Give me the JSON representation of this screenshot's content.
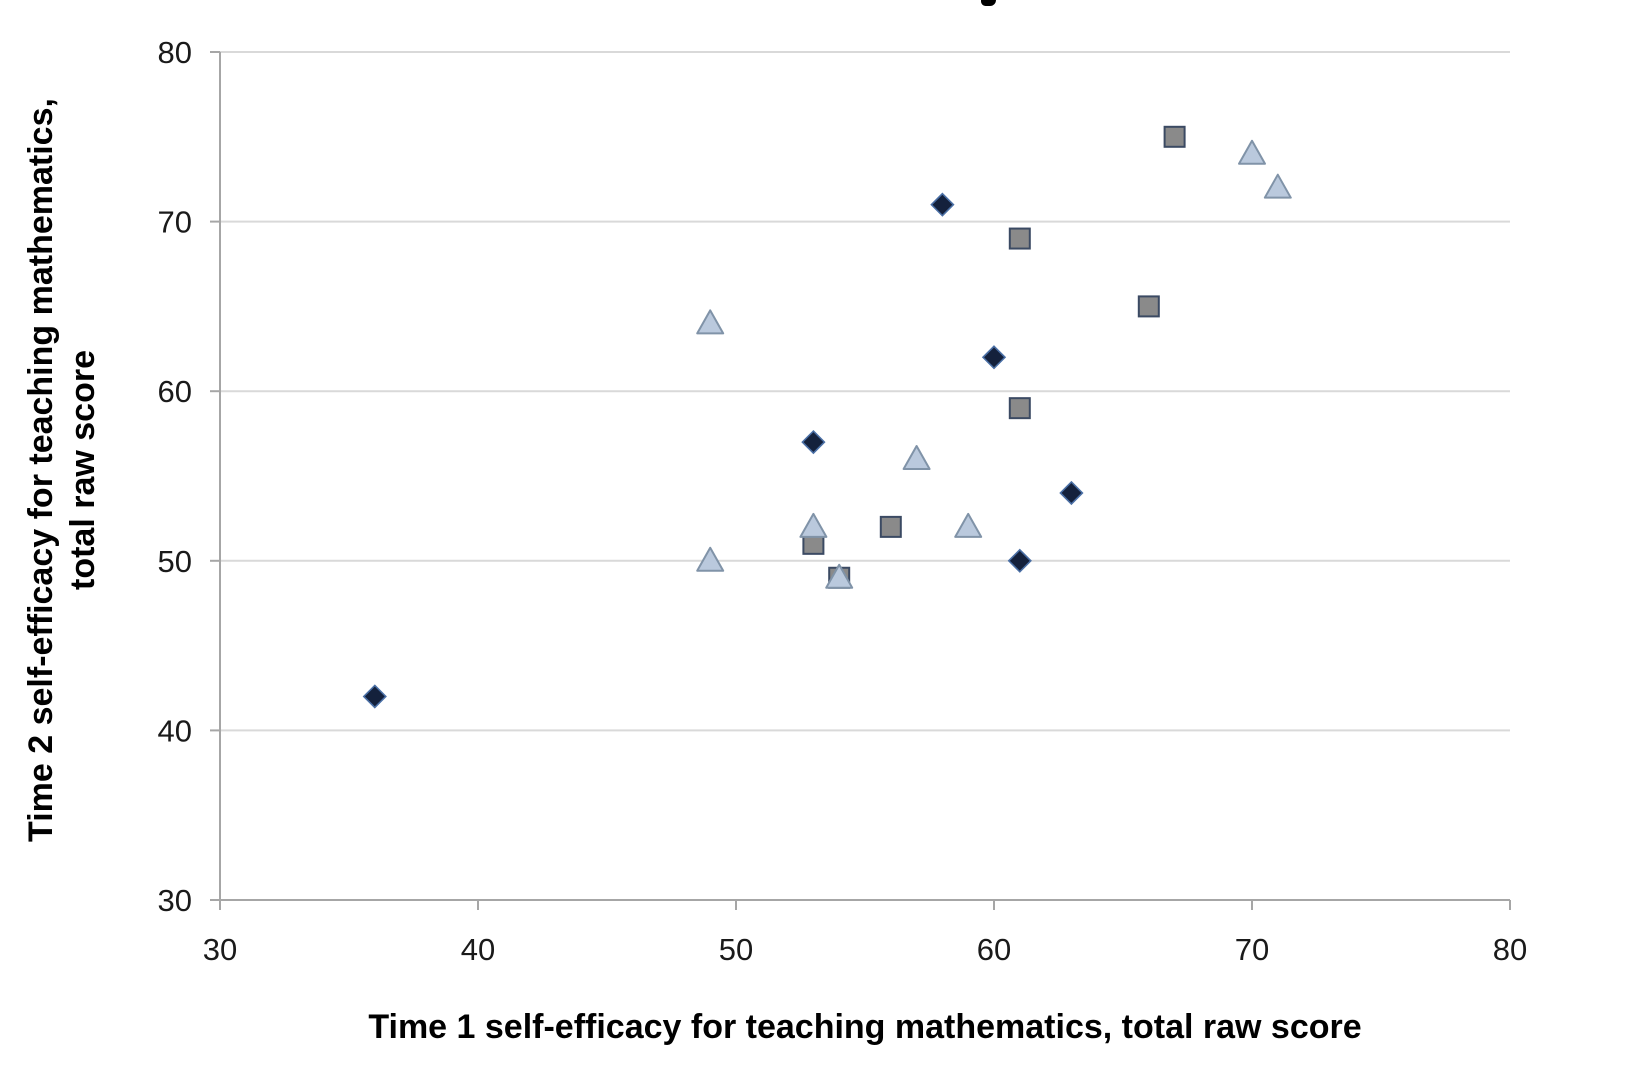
{
  "page": {
    "background": "#ffffff"
  },
  "chart_data": {
    "type": "scatter",
    "title": "",
    "xlabel": "Time 1 self-efficacy for teaching mathematics, total raw score",
    "ylabel": "Time 2 self-efficacy for teaching mathematics, total raw score",
    "ylabel_lines": [
      "Time 2 self-efficacy for teaching mathematics,",
      "total raw score"
    ],
    "xlim": [
      30,
      80
    ],
    "ylim": [
      30,
      80
    ],
    "x_ticks": [
      30,
      40,
      50,
      60,
      70,
      80
    ],
    "y_ticks": [
      30,
      40,
      50,
      60,
      70,
      80
    ],
    "grid": "horizontal-only",
    "legend_position": "none",
    "series": [
      {
        "marker": "diamond",
        "fill": "#14213c",
        "stroke": "#4a6fa5",
        "points": [
          [
            36,
            42
          ],
          [
            53,
            57
          ],
          [
            58,
            71
          ],
          [
            60,
            62
          ],
          [
            61,
            50
          ],
          [
            63,
            54
          ]
        ]
      },
      {
        "marker": "square",
        "fill": "#8a8a8a",
        "stroke": "#3b4a63",
        "points": [
          [
            53,
            51
          ],
          [
            54,
            49
          ],
          [
            56,
            52
          ],
          [
            61,
            59
          ],
          [
            61,
            69
          ],
          [
            66,
            65
          ],
          [
            67,
            75
          ]
        ]
      },
      {
        "marker": "triangle",
        "fill": "#bac9dd",
        "stroke": "#8093a8",
        "points": [
          [
            49,
            50
          ],
          [
            49,
            64
          ],
          [
            53,
            52
          ],
          [
            54,
            49
          ],
          [
            57,
            56
          ],
          [
            59,
            52
          ],
          [
            70,
            74
          ],
          [
            71,
            72
          ]
        ]
      }
    ],
    "colors": {
      "gridline": "#d9d9d9",
      "axis": "#a6a6a6",
      "tick_label": "#1a1a1a",
      "axis_title": "#000000"
    }
  }
}
